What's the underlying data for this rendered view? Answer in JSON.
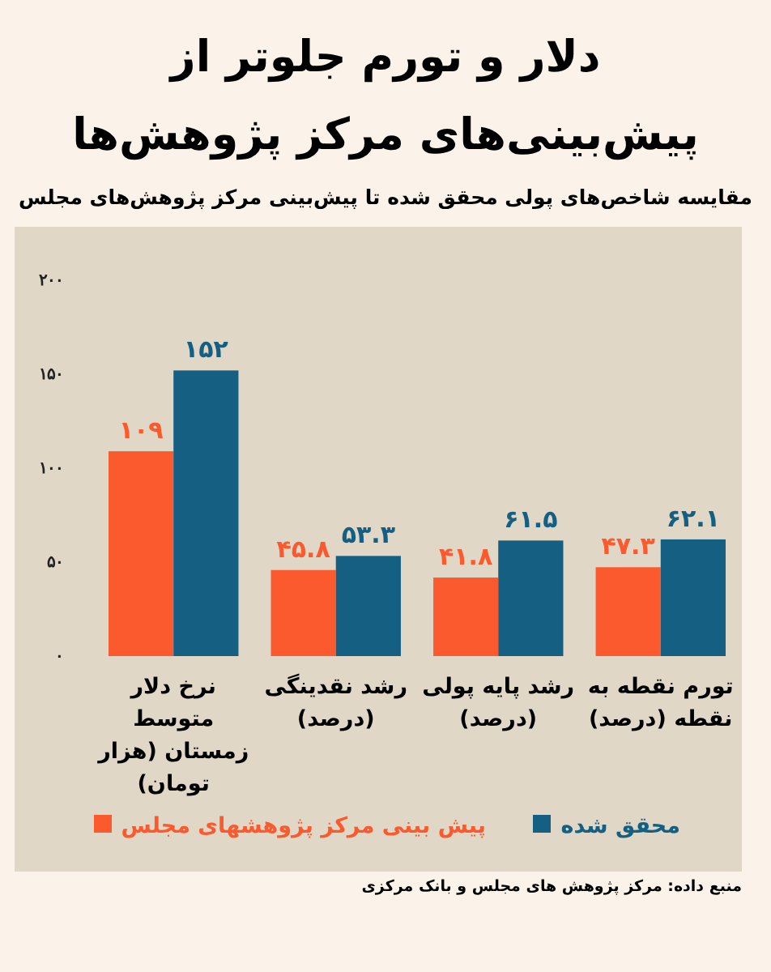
{
  "chart_data": {
    "type": "bar",
    "title": "دلار و تورم جلوتر از پیش‌بینی‌های مرکز پژوهش‌ها",
    "subtitle": "مقایسه شاخص‌های پولی محقق شده تا پیش‌بینی مرکز پژوهش‌های مجلس",
    "categories": [
      "نرخ دلار متوسط زمستان (هزار تومان)",
      "رشد نقدینگی (درصد)",
      "رشد پایه پولی (درصد)",
      "تورم نقطه به نقطه (درصد)"
    ],
    "series": [
      {
        "name": "پیش بینی مرکز پژوهشهای مجلس",
        "color": "#fb5a2e",
        "values": [
          109,
          45.8,
          41.8,
          47.3
        ],
        "value_labels": [
          "۱۰۹",
          "۴۵.۸",
          "۴۱.۸",
          "۴۷.۳"
        ]
      },
      {
        "name": "محقق شده",
        "color": "#145f82",
        "values": [
          152,
          53.3,
          61.5,
          62.1
        ],
        "value_labels": [
          "۱۵۲",
          "۵۳.۳",
          "۶۱.۵",
          "۶۲.۱"
        ]
      }
    ],
    "ylim": [
      0,
      200
    ],
    "yticks": [
      {
        "value": 0,
        "label": "۰"
      },
      {
        "value": 50,
        "label": "۵۰"
      },
      {
        "value": 100,
        "label": "۱۰۰"
      },
      {
        "value": 150,
        "label": "۱۵۰"
      },
      {
        "value": 200,
        "label": "۲۰۰"
      }
    ],
    "grid": false,
    "legend": "bottom",
    "annotations": [
      "منبع داده: مرکز پژوهش های مجلس و بانک مرکزی"
    ]
  }
}
